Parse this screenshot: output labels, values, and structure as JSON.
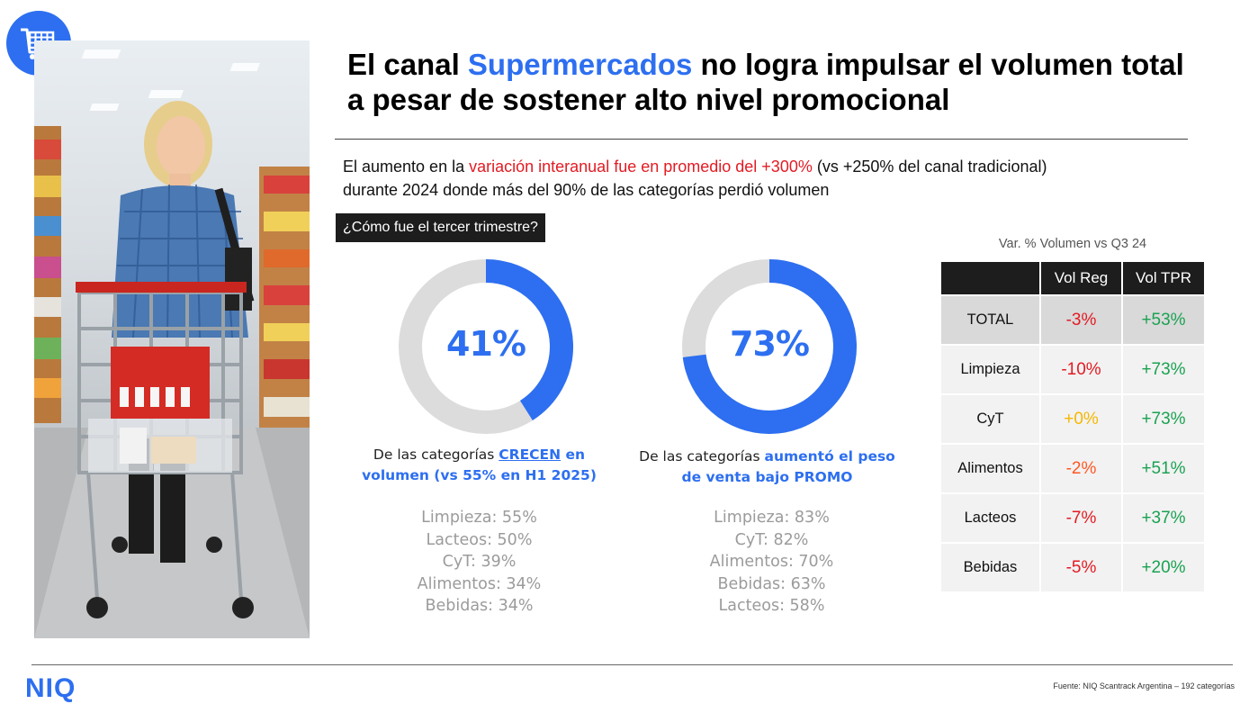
{
  "title": {
    "before": "El canal ",
    "highlight": "Supermercados",
    "after": " no logra impulsar el volumen total a pesar de sostener alto nivel promocional"
  },
  "intro": {
    "before": "El aumento en la ",
    "highlight": "variación interanual fue en promedio del +300%",
    "after_line1": " (vs +250% del canal tradicional)",
    "line2": "durante 2024 donde más del 90% de las categorías perdió volumen"
  },
  "question": "¿Cómo fue el tercer trimestre?",
  "donuts": [
    {
      "value": 41,
      "label": "41%",
      "caption_before": "De las categorías ",
      "caption_highlight": "CRECEN",
      "caption_mid": " en",
      "caption_line2": "volumen (vs 55% en H1 2025)",
      "categories": [
        "Limpieza: 55%",
        "Lacteos: 50%",
        "CyT: 39%",
        "Alimentos: 34%",
        "Bebidas: 34%"
      ]
    },
    {
      "value": 73,
      "label": "73%",
      "caption_before": "De las categorías ",
      "caption_highlight": "aumentó el peso",
      "caption_line2": "de venta bajo PROMO",
      "categories": [
        "Limpieza: 83%",
        "CyT: 82%",
        "Alimentos: 70%",
        "Bebidas: 63%",
        "Lacteos: 58%"
      ]
    }
  ],
  "colors": {
    "accent": "#2d6ff0",
    "donut_track": "#dcdcdc",
    "negative": "#e31b23",
    "positive": "#1aa251",
    "neutral": "#f5b800"
  },
  "table": {
    "title": "Var. % Volumen vs Q3 24",
    "headers": [
      "",
      "Vol Reg",
      "Vol TPR"
    ],
    "rows": [
      {
        "category": "TOTAL",
        "vol_reg": "-3%",
        "vol_tpr": "+53%"
      },
      {
        "category": "Limpieza",
        "vol_reg": "-10%",
        "vol_tpr": "+73%"
      },
      {
        "category": "CyT",
        "vol_reg": "+0%",
        "vol_tpr": "+73%"
      },
      {
        "category": "Alimentos",
        "vol_reg": "-2%",
        "vol_tpr": "+51%"
      },
      {
        "category": "Lacteos",
        "vol_reg": "-7%",
        "vol_tpr": "+37%"
      },
      {
        "category": "Bebidas",
        "vol_reg": "-5%",
        "vol_tpr": "+20%"
      }
    ]
  },
  "icons": {
    "badge": "shopping-cart-icon"
  },
  "footer": {
    "logo": "NIQ",
    "source": "Fuente: NIQ Scantrack Argentina – 192 categorías"
  }
}
